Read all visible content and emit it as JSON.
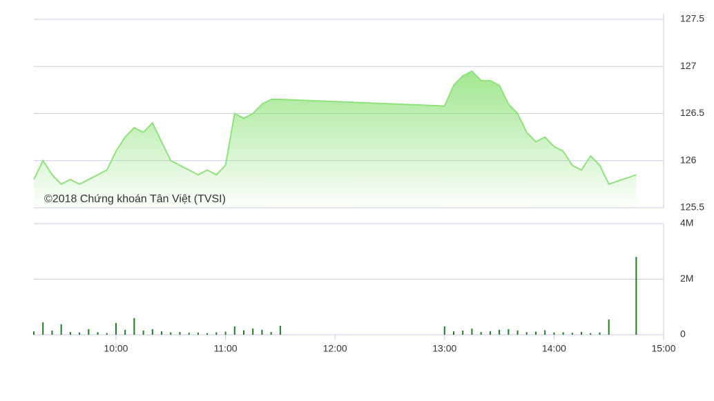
{
  "chart_data": [
    {
      "type": "line",
      "annotation": "©2018 Chứng khoán Tân Việt (TVSI)",
      "color": "#8fe27b",
      "x": [
        555,
        560,
        565,
        570,
        575,
        580,
        585,
        590,
        595,
        600,
        605,
        610,
        615,
        620,
        625,
        630,
        635,
        640,
        645,
        650,
        655,
        660,
        665,
        670,
        675,
        680,
        685,
        690,
        780,
        785,
        790,
        795,
        800,
        805,
        810,
        815,
        820,
        825,
        830,
        835,
        840,
        845,
        850,
        855,
        860,
        865,
        870,
        885
      ],
      "values": [
        125.8,
        126.0,
        125.85,
        125.75,
        125.8,
        125.75,
        125.8,
        125.85,
        125.9,
        126.1,
        126.25,
        126.35,
        126.3,
        126.4,
        126.2,
        126.0,
        125.95,
        125.9,
        125.85,
        125.9,
        125.85,
        125.95,
        126.5,
        126.45,
        126.5,
        126.6,
        126.65,
        126.65,
        126.58,
        126.8,
        126.9,
        126.95,
        126.85,
        126.85,
        126.8,
        126.6,
        126.5,
        126.3,
        126.2,
        126.25,
        126.15,
        126.1,
        125.95,
        125.9,
        126.05,
        125.95,
        125.75,
        125.85
      ],
      "xlim": [
        555,
        900
      ],
      "ylim": [
        125.5,
        127.5
      ],
      "yticks": [
        125.5,
        126,
        126.5,
        127,
        127.5
      ],
      "grid": true
    },
    {
      "type": "bar",
      "color": "#1e7d1e",
      "x": [
        555,
        560,
        565,
        570,
        575,
        580,
        585,
        590,
        595,
        600,
        605,
        610,
        615,
        620,
        625,
        630,
        635,
        640,
        645,
        650,
        655,
        660,
        665,
        670,
        675,
        680,
        685,
        690,
        780,
        785,
        790,
        795,
        800,
        805,
        810,
        815,
        820,
        825,
        830,
        835,
        840,
        845,
        850,
        855,
        860,
        865,
        870,
        885
      ],
      "values": [
        120000,
        450000,
        150000,
        380000,
        100000,
        80000,
        200000,
        90000,
        60000,
        420000,
        180000,
        600000,
        150000,
        200000,
        120000,
        90000,
        100000,
        70000,
        80000,
        60000,
        90000,
        110000,
        300000,
        160000,
        220000,
        180000,
        100000,
        320000,
        300000,
        120000,
        150000,
        220000,
        100000,
        130000,
        180000,
        200000,
        150000,
        90000,
        110000,
        160000,
        80000,
        90000,
        70000,
        100000,
        60000,
        80000,
        550000,
        2800000
      ],
      "xlim": [
        555,
        900
      ],
      "ylim": [
        0,
        4000000
      ],
      "yticks": [
        0,
        {
          "value": 2000000,
          "label": "2M"
        },
        {
          "value": 4000000,
          "label": "4M"
        }
      ],
      "xticks": [
        {
          "value": 600,
          "label": "10:00"
        },
        {
          "value": 660,
          "label": "11:00"
        },
        {
          "value": 720,
          "label": "12:00"
        },
        {
          "value": 780,
          "label": "13:00"
        },
        {
          "value": 840,
          "label": "14:00"
        },
        {
          "value": 900,
          "label": "15:00"
        }
      ],
      "grid": true
    }
  ]
}
